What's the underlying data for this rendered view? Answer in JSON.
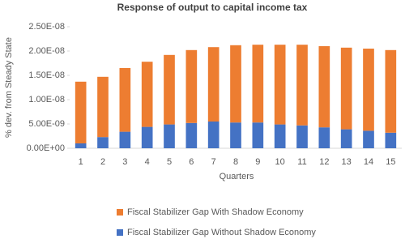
{
  "chart_data": {
    "type": "stacked_bar",
    "title": "Response of output to capital income tax",
    "x_label": "Quarters",
    "y_label": "% dev. from Steady State",
    "categories": [
      "1",
      "2",
      "3",
      "4",
      "5",
      "6",
      "7",
      "8",
      "9",
      "10",
      "11",
      "12",
      "13",
      "14",
      "15"
    ],
    "series": [
      {
        "name": "Fiscal Stabilizer Gap Without Shadow Economy",
        "color": "#4472c4",
        "values": [
          1e-09,
          2.3e-09,
          3.4e-09,
          4.4e-09,
          4.9e-09,
          5.2e-09,
          5.5e-09,
          5.3e-09,
          5.3e-09,
          4.9e-09,
          4.7e-09,
          4.3e-09,
          3.9e-09,
          3.6e-09,
          3.2e-09
        ]
      },
      {
        "name": "Fiscal Stabilizer Gap With Shadow Economy",
        "color": "#ed7d31",
        "values": [
          1.27e-08,
          1.24e-08,
          1.31e-08,
          1.34e-08,
          1.43e-08,
          1.5e-08,
          1.53e-08,
          1.59e-08,
          1.6e-08,
          1.64e-08,
          1.66e-08,
          1.67e-08,
          1.68e-08,
          1.69e-08,
          1.7e-08
        ]
      }
    ],
    "ylim": [
      0,
      2.5e-08
    ],
    "yticks": [
      {
        "value": 0,
        "label": "0.00E+00"
      },
      {
        "value": 5e-09,
        "label": "5.00E-09"
      },
      {
        "value": 1e-08,
        "label": "1.00E-08"
      },
      {
        "value": 1.5e-08,
        "label": "1.50E-08"
      },
      {
        "value": 2e-08,
        "label": "2.00E-08"
      },
      {
        "value": 2.5e-08,
        "label": "2.50E-08"
      }
    ],
    "grid": false
  }
}
